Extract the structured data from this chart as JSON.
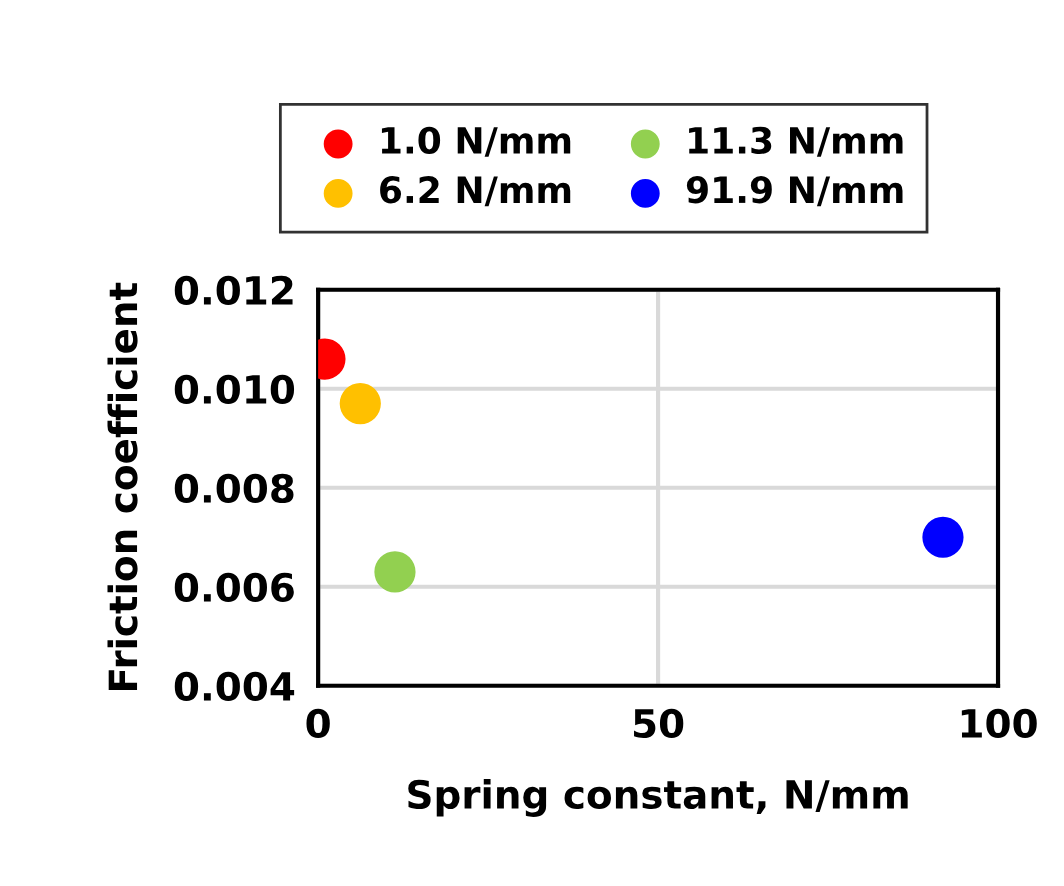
{
  "chart_data": {
    "type": "scatter",
    "xlabel": "Spring constant, N/mm",
    "ylabel": "Friction coefficient",
    "series": [
      {
        "name": "1.0 N/mm",
        "color": "#ff0000",
        "x": [
          1.0
        ],
        "values": [
          0.0106
        ]
      },
      {
        "name": "6.2 N/mm",
        "color": "#ffc000",
        "x": [
          6.2
        ],
        "values": [
          0.0097
        ]
      },
      {
        "name": "11.3 N/mm",
        "color": "#92d050",
        "x": [
          11.3
        ],
        "values": [
          0.0063
        ]
      },
      {
        "name": "91.9 N/mm",
        "color": "#0000ff",
        "x": [
          91.9
        ],
        "values": [
          0.007
        ]
      }
    ],
    "xlim": [
      0,
      100
    ],
    "xticks": [
      0,
      50,
      100
    ],
    "ylim": [
      0.004,
      0.012
    ],
    "yticks": [
      {
        "value": 0.004,
        "label": "0.004"
      },
      {
        "value": 0.006,
        "label": "0.006"
      },
      {
        "value": 0.008,
        "label": "0.008"
      },
      {
        "value": 0.01,
        "label": "0.010"
      },
      {
        "value": 0.012,
        "label": "0.012"
      }
    ],
    "grid": true,
    "legend": "top",
    "marker": "circle"
  }
}
